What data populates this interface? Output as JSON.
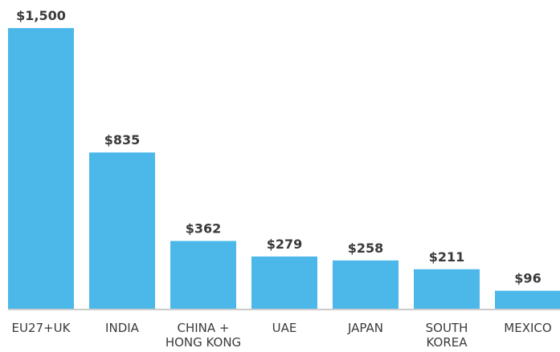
{
  "chart_data": {
    "type": "bar",
    "categories": [
      "EU27+UK",
      "INDIA",
      "CHINA +\nHONG KONG",
      "UAE",
      "JAPAN",
      "SOUTH\nKOREA",
      "MEXICO"
    ],
    "values": [
      1500,
      835,
      362,
      279,
      258,
      211,
      96
    ],
    "value_labels": [
      "$1,500",
      "$835",
      "$362",
      "$279",
      "$258",
      "$211",
      "$96"
    ],
    "color": "#4cb8e9"
  }
}
